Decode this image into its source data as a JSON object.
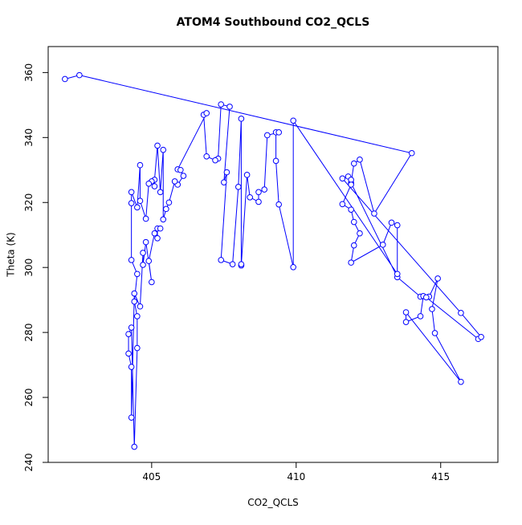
{
  "chart_data": {
    "type": "line",
    "title": "ATOM4 Southbound CO2_QCLS",
    "x_label": "CO2_QCLS",
    "y_label": "Theta (K)",
    "x": [
      402.0,
      402.5,
      414.0,
      412.7,
      412.2,
      412.0,
      411.9,
      413.5,
      414.3,
      414.6,
      414.9,
      414.7,
      414.8,
      415.7,
      413.8,
      413.8,
      414.3,
      414.4,
      414.5,
      416.3,
      416.4,
      415.7,
      411.6,
      411.8,
      411.9,
      411.9,
      411.6,
      411.9,
      412.0,
      412.2,
      412.0,
      411.9,
      413.0,
      413.3,
      413.5,
      413.5,
      409.9,
      409.9,
      409.4,
      409.3,
      409.3,
      409.4,
      409.0,
      408.9,
      408.7,
      408.7,
      408.4,
      408.3,
      408.1,
      408.1,
      408.1,
      408.0,
      407.8,
      407.4,
      407.6,
      407.5,
      407.7,
      407.4,
      407.3,
      407.2,
      406.9,
      406.8,
      406.9,
      405.9,
      406.0,
      406.1,
      405.9,
      405.8,
      405.6,
      405.5,
      405.4,
      405.4,
      405.3,
      405.2,
      405.1,
      405.1,
      405.0,
      404.9,
      404.8,
      404.6,
      404.6,
      404.5,
      404.3,
      404.3,
      404.3,
      404.5,
      404.4,
      404.5,
      404.5,
      404.4,
      404.3,
      404.2,
      404.2,
      404.3,
      404.3,
      404.4,
      404.6,
      404.7,
      404.7,
      404.8,
      405.0,
      404.9,
      405.1,
      405.2,
      405.2,
      405.3
    ],
    "series": [
      {
        "name": "CO2_QCLS",
        "color": "#0000ff",
        "values": [
          358.0,
          359.2,
          335.2,
          316.6,
          333.2,
          332.0,
          326.0,
          297.0,
          291.0,
          291.0,
          296.6,
          287.2,
          279.8,
          264.8,
          286.2,
          283.2,
          285.0,
          291.2,
          290.8,
          278.0,
          278.6,
          286.0,
          327.4,
          328.0,
          327.0,
          325.5,
          319.5,
          317.8,
          314.0,
          310.5,
          306.8,
          301.5,
          307.0,
          313.8,
          313.0,
          298.0,
          345.2,
          300.1,
          319.4,
          332.8,
          341.6,
          341.6,
          340.7,
          324.0,
          323.2,
          320.2,
          321.6,
          328.5,
          300.6,
          301.0,
          345.8,
          324.8,
          301.0,
          302.3,
          329.3,
          326.2,
          349.5,
          350.2,
          333.5,
          333.0,
          334.2,
          347.0,
          347.5,
          330.2,
          330.0,
          328.2,
          325.5,
          326.5,
          320.0,
          318.0,
          314.8,
          336.2,
          323.2,
          337.5,
          327.0,
          325.0,
          326.5,
          325.8,
          315.0,
          320.5,
          331.5,
          318.5,
          323.2,
          319.8,
          302.3,
          298.0,
          289.5,
          285.0,
          275.2,
          244.8,
          281.5,
          279.5,
          273.5,
          269.4,
          253.8,
          292.0,
          288.0,
          304.5,
          300.8,
          307.8,
          295.5,
          302.0,
          310.5,
          309.0,
          312.0,
          312.0
        ]
      }
    ],
    "xlim": [
      401.42,
      416.98
    ],
    "ylim": [
      240,
      368
    ],
    "xticks": [
      405,
      410,
      415
    ],
    "yticks": [
      240,
      260,
      280,
      300,
      320,
      340,
      360
    ]
  }
}
